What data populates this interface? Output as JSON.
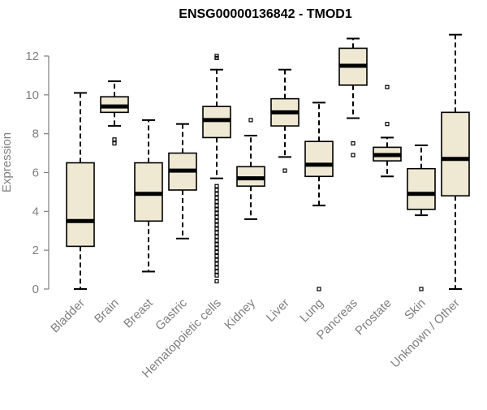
{
  "chart_data": {
    "type": "boxplot",
    "title": "ENSG00000136842 - TMOD1",
    "ylabel": "Expression",
    "xlabel": "",
    "ylim": [
      0,
      13
    ],
    "yticks": [
      0,
      2,
      4,
      6,
      8,
      10,
      12
    ],
    "categories": [
      "Bladder",
      "Brain",
      "Breast",
      "Gastric",
      "Hematopoietic cells",
      "Kidney",
      "Liver",
      "Lung",
      "Pancreas",
      "Prostate",
      "Skin",
      "Unknown / Other"
    ],
    "boxes": [
      {
        "category": "Bladder",
        "whisker_low": 0.0,
        "q1": 2.2,
        "median": 3.5,
        "q3": 6.5,
        "whisker_high": 10.1,
        "outliers": []
      },
      {
        "category": "Brain",
        "whisker_low": 8.4,
        "q1": 9.1,
        "median": 9.4,
        "q3": 9.9,
        "whisker_high": 10.7,
        "outliers": [
          7.5,
          7.7
        ]
      },
      {
        "category": "Breast",
        "whisker_low": 0.9,
        "q1": 3.5,
        "median": 4.9,
        "q3": 6.5,
        "whisker_high": 8.7,
        "outliers": []
      },
      {
        "category": "Gastric",
        "whisker_low": 2.6,
        "q1": 5.1,
        "median": 6.1,
        "q3": 7.0,
        "whisker_high": 8.5,
        "outliers": []
      },
      {
        "category": "Hematopoietic cells",
        "whisker_low": 5.7,
        "q1": 7.8,
        "median": 8.7,
        "q3": 9.4,
        "whisker_high": 11.3,
        "outliers": [
          12.0,
          11.9,
          5.3,
          5.1,
          4.9,
          4.7,
          4.5,
          4.3,
          4.1,
          3.9,
          3.7,
          3.5,
          3.3,
          3.1,
          2.9,
          2.7,
          2.5,
          2.3,
          2.1,
          1.9,
          1.7,
          1.5,
          1.3,
          1.1,
          0.9,
          0.7,
          0.4
        ]
      },
      {
        "category": "Kidney",
        "whisker_low": 3.6,
        "q1": 5.3,
        "median": 5.7,
        "q3": 6.3,
        "whisker_high": 7.9,
        "outliers": [
          8.7
        ]
      },
      {
        "category": "Liver",
        "whisker_low": 6.8,
        "q1": 8.4,
        "median": 9.1,
        "q3": 9.8,
        "whisker_high": 11.3,
        "outliers": [
          6.1
        ]
      },
      {
        "category": "Lung",
        "whisker_low": 4.3,
        "q1": 5.8,
        "median": 6.4,
        "q3": 7.6,
        "whisker_high": 9.6,
        "outliers": [
          0.0
        ]
      },
      {
        "category": "Pancreas",
        "whisker_low": 8.8,
        "q1": 10.5,
        "median": 11.5,
        "q3": 12.4,
        "whisker_high": 12.9,
        "outliers": [
          7.5,
          6.9
        ]
      },
      {
        "category": "Prostate",
        "whisker_low": 5.8,
        "q1": 6.6,
        "median": 6.9,
        "q3": 7.3,
        "whisker_high": 7.8,
        "outliers": [
          10.4,
          8.5
        ]
      },
      {
        "category": "Skin",
        "whisker_low": 3.8,
        "q1": 4.1,
        "median": 4.9,
        "q3": 6.2,
        "whisker_high": 7.4,
        "outliers": [
          0.0
        ]
      },
      {
        "category": "Unknown / Other",
        "whisker_low": 0.0,
        "q1": 4.8,
        "median": 6.7,
        "q3": 9.1,
        "whisker_high": 13.1,
        "outliers": []
      }
    ]
  },
  "colors": {
    "box_fill": "#efe9d4",
    "stroke": "#000000",
    "axis_text": "#7f7f7f"
  }
}
